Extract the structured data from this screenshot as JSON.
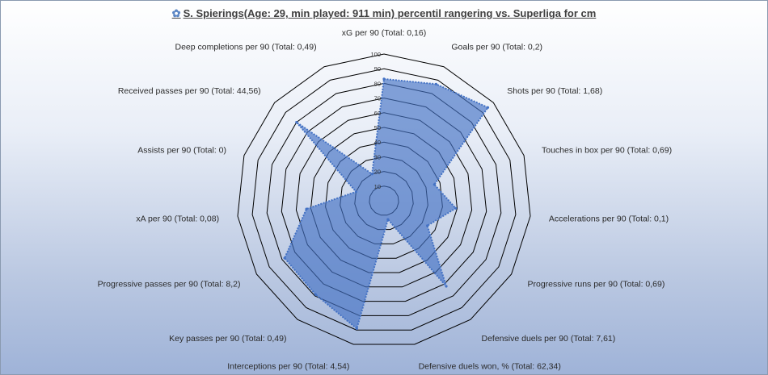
{
  "chart_data": {
    "type": "radar",
    "title": "S. Spierings(Age: 29, min played: 911 min) percentil rangering vs. Superliga for cm",
    "title_icon": "flower-icon",
    "rlim": [
      0,
      100
    ],
    "ticks": [
      "10",
      "20",
      "30",
      "40",
      "50",
      "60",
      "70",
      "80",
      "90",
      "100"
    ],
    "categories": [
      "xG per 90 (Total: 0,16)",
      "Goals per 90 (Total: 0,2)",
      "Shots per 90 (Total: 1,68)",
      "Touches in box per 90 (Total: 0,69)",
      "Accelerations per 90 (Total: 0,1)",
      "Progressive runs per 90 (Total: 0,69)",
      "Defensive duels per 90 (Total: 7,61)",
      "Defensive duels won, % (Total: 62,34)",
      "Interceptions per 90 (Total: 4,54)",
      "Key passes per 90 (Total: 0,49)",
      "Progressive passes per 90 (Total: 8,2)",
      "xA per 90 (Total: 0,08)",
      "Assists per 90 (Total: 0)",
      "Received passes per 90 (Total: 44,56)",
      "Deep completions per 90 (Total: 0,49)"
    ],
    "values": [
      83,
      87,
      95,
      36,
      49,
      34,
      72,
      13,
      89,
      79,
      78,
      53,
      20,
      80,
      20
    ],
    "series_color": "#4472c4",
    "grid": true
  }
}
